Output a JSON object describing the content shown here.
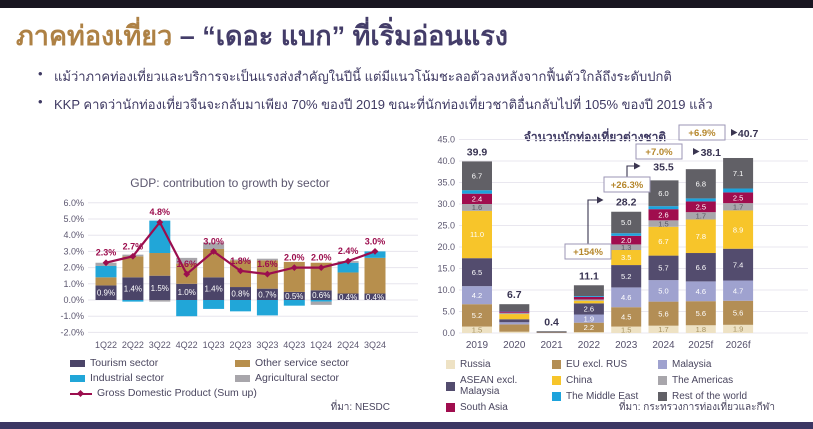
{
  "slide": {
    "title": {
      "highlight": "ภาคท่องเที่ยว",
      "separator": " – ",
      "rest": "“เดอะ แบก” ที่เริ่มอ่อนแรง"
    },
    "bullets": [
      "แม้ว่าภาคท่องเที่ยวและบริการจะเป็นแรงส่งสำคัญในปีนี้ แต่มีแนวโน้มชะลอตัวลงหลังจากฟื้นตัวใกล้ถึงระดับปกติ",
      "KKP คาดว่านักท่องเที่ยวจีนจะกลับมาเพียง 70% ของปี 2019 ขณะที่นักท่องเที่ยวชาติอื่นกลับไปที่ 105% ของปี 2019 แล้ว"
    ]
  },
  "chart_data": [
    {
      "type": "bar",
      "subtype": "stacked-bar-with-line",
      "title": "GDP: contribution to growth by sector",
      "source": "ที่มา: NESDC",
      "ylim": [
        -2,
        6
      ],
      "y_tick_step": 1,
      "y_tick_suffix": "%",
      "grid": true,
      "legend_position": "bottom",
      "categories": [
        "1Q22",
        "2Q22",
        "3Q22",
        "4Q22",
        "1Q23",
        "2Q23",
        "3Q23",
        "4Q23",
        "1Q24",
        "2Q24",
        "3Q24"
      ],
      "series": [
        {
          "name": "Tourism sector",
          "color": "#4b4468",
          "labeled": true,
          "values": [
            0.9,
            1.4,
            1.5,
            1.0,
            1.4,
            0.8,
            0.7,
            0.5,
            0.6,
            0.4,
            0.4
          ]
        },
        {
          "name": "Other service sector",
          "color": "#b78f4d",
          "estimated": true,
          "values": [
            0.5,
            1.3,
            1.4,
            1.25,
            1.75,
            1.65,
            1.75,
            1.85,
            1.7,
            1.3,
            2.2
          ]
        },
        {
          "name": "Industrial sector",
          "color": "#21a6d8",
          "estimated": true,
          "values": [
            0.7,
            -0.1,
            2.0,
            -1.0,
            -0.55,
            -0.7,
            -0.95,
            -0.35,
            -0.1,
            0.6,
            0.4
          ]
        },
        {
          "name": "Agricultural sector",
          "color": "#a8a6ab",
          "estimated": true,
          "values": [
            0.2,
            0.1,
            -0.1,
            0.35,
            0.4,
            0.05,
            0.1,
            0.0,
            -0.2,
            0.1,
            0.0
          ]
        }
      ],
      "line": {
        "name": "Gross Domestic Product (Sum up)",
        "color": "#9c0e4e",
        "values": [
          2.3,
          2.7,
          4.8,
          1.6,
          3.0,
          1.8,
          1.6,
          2.0,
          2.0,
          2.4,
          3.0
        ]
      }
    },
    {
      "type": "bar",
      "subtype": "stacked-bar",
      "title": "จำนวนนักท่องเที่ยวต่างชาติ",
      "source": "ที่มา: กระทรวงการท่องเที่ยวและกีฬา",
      "ylim": [
        0,
        45
      ],
      "y_tick_step": 5,
      "grid": true,
      "legend_position": "bottom",
      "categories": [
        "2019",
        "2020",
        "2021",
        "2022",
        "2023",
        "2024",
        "2025f",
        "2026f"
      ],
      "totals": [
        39.9,
        6.7,
        0.4,
        11.1,
        28.2,
        35.5,
        38.1,
        40.7
      ],
      "growth_annotations": [
        {
          "label": "+154%",
          "from": "2022",
          "to": "2023"
        },
        {
          "label": "+26.3%",
          "from": "2023",
          "to": "2024"
        },
        {
          "label": "+7.0%",
          "from": "2024",
          "to": "2025f"
        },
        {
          "label": "+6.9%",
          "from": "2025f",
          "to": "2026f"
        }
      ],
      "series": [
        {
          "name": "Russia",
          "color": "#eee2c4",
          "values": [
            1.5,
            0.3,
            0.0,
            0.2,
            1.5,
            1.7,
            1.8,
            1.9
          ],
          "labels": [
            "1.5",
            null,
            null,
            null,
            "1.5",
            "1.7",
            "1.8",
            "1.9"
          ]
        },
        {
          "name": "EU excl. RUS",
          "color": "#b38e55",
          "values": [
            5.2,
            1.7,
            0.1,
            2.2,
            4.5,
            5.6,
            5.6,
            5.6
          ],
          "labels": [
            "5.2",
            null,
            null,
            "2.2",
            "4.5",
            "5.6",
            "5.6",
            "5.6"
          ]
        },
        {
          "name": "Malaysia",
          "color": "#9fa2cf",
          "values": [
            4.2,
            0.5,
            0.0,
            1.9,
            4.6,
            5.0,
            4.6,
            4.7
          ],
          "labels": [
            "4.2",
            null,
            null,
            "1.9",
            "4.6",
            "5.0",
            "4.6",
            "4.7"
          ]
        },
        {
          "name": "ASEAN excl. Malaysia",
          "color": "#534c6e",
          "values": [
            6.5,
            0.7,
            0.1,
            2.6,
            5.2,
            5.7,
            6.6,
            7.4
          ],
          "labels": [
            "6.5",
            null,
            null,
            "2.6",
            "5.2",
            "5.7",
            "6.6",
            "7.4"
          ]
        },
        {
          "name": "China",
          "color": "#f7c52a",
          "values": [
            11.0,
            1.2,
            0.0,
            0.6,
            3.5,
            6.7,
            7.8,
            8.9
          ],
          "labels": [
            "11.0",
            null,
            null,
            null,
            "3.5",
            "6.7",
            "7.8",
            "8.9"
          ]
        },
        {
          "name": "The Americas",
          "color": "#a8a6ab",
          "values": [
            1.6,
            0.3,
            0.0,
            0.3,
            1.3,
            1.5,
            1.7,
            1.7
          ],
          "labels": [
            "1.6",
            null,
            null,
            null,
            "1.3",
            "1.5",
            "1.7",
            "1.7"
          ]
        },
        {
          "name": "South Asia",
          "color": "#a00d4e",
          "values": [
            2.4,
            0.3,
            0.0,
            0.6,
            2.0,
            2.6,
            2.5,
            2.5
          ],
          "labels": [
            "2.4",
            null,
            null,
            null,
            "2.0",
            "2.6",
            "2.5",
            "2.5"
          ]
        },
        {
          "name": "The Middle East",
          "color": "#1da3dc",
          "values": [
            0.8,
            0.1,
            0.0,
            0.2,
            0.6,
            0.7,
            0.7,
            0.9
          ],
          "labels": [
            null,
            null,
            null,
            null,
            null,
            null,
            null,
            null
          ]
        },
        {
          "name": "Rest of the world",
          "color": "#616066",
          "values": [
            6.7,
            1.6,
            0.2,
            2.5,
            5.0,
            6.0,
            6.8,
            7.1
          ],
          "labels": [
            "6.7",
            null,
            null,
            null,
            "5.0",
            "6.0",
            "6.8",
            "7.1"
          ]
        }
      ]
    }
  ]
}
